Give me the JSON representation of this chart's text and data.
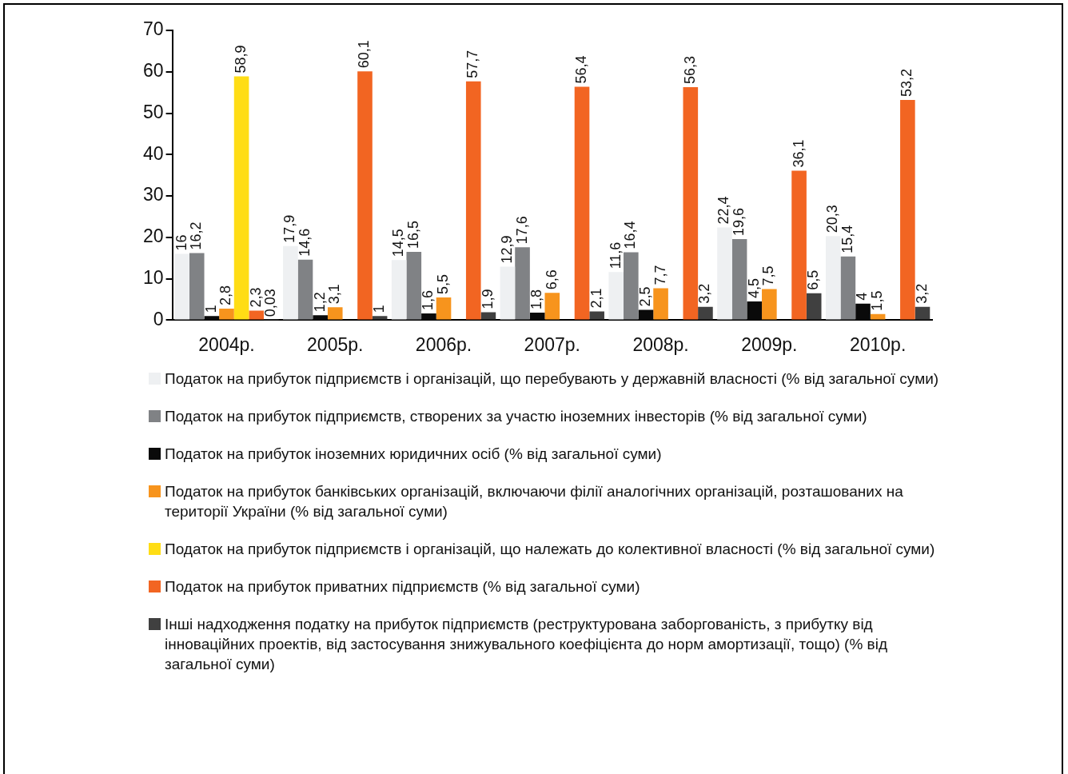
{
  "chart_data": {
    "type": "bar",
    "categories": [
      "2004р.",
      "2005р.",
      "2006р.",
      "2007р.",
      "2008р.",
      "2009р.",
      "2010р."
    ],
    "ylim": [
      0,
      70
    ],
    "yticks": [
      0,
      10,
      20,
      30,
      40,
      50,
      60,
      70
    ],
    "grid": false,
    "legend": "bottom",
    "series": [
      {
        "name": "Податок на прибуток підприємств і організацій, що перебувають у державній власності (% від загальної суми)",
        "color": "#eef0f2",
        "values": [
          16,
          17.9,
          14.5,
          12.9,
          11.6,
          22.4,
          20.3
        ],
        "value_labels": [
          "16",
          "17,9",
          "14,5",
          "12,9",
          "11,6",
          "22,4",
          "20,3"
        ]
      },
      {
        "name": "Податок на прибуток підприємств, створених за участю іноземних інвесторів (% від загальної суми)",
        "color": "#808285",
        "values": [
          16.2,
          14.6,
          16.5,
          17.6,
          16.4,
          19.6,
          15.4
        ],
        "value_labels": [
          "16,2",
          "14,6",
          "16,5",
          "17,6",
          "16,4",
          "19,6",
          "15,4"
        ]
      },
      {
        "name": "Податок на прибуток іноземних юридичних осіб (% від загальної суми)",
        "color": "#0a0a0a",
        "values": [
          1,
          1.2,
          1.6,
          1.8,
          2.5,
          4.5,
          4
        ],
        "value_labels": [
          "1",
          "1,2",
          "1,6",
          "1,8",
          "2,5",
          "4,5",
          "4"
        ]
      },
      {
        "name": "Податок на прибуток банківських організацій, включаючи філії аналогічних організацій, розташованих на території України (% від загальної суми)",
        "color": "#f7941d",
        "values": [
          2.8,
          3.1,
          5.5,
          6.6,
          7.7,
          7.5,
          1.5
        ],
        "value_labels": [
          "2,8",
          "3,1",
          "5,5",
          "6,6",
          "7,7",
          "7,5",
          "1,5"
        ]
      },
      {
        "name": "Податок на прибуток підприємств і організацій, що належать до колективної власності (% від загальної суми)",
        "color": "#ffdd15",
        "values": [
          58.9,
          null,
          null,
          null,
          null,
          null,
          null
        ],
        "value_labels": [
          "58,9",
          null,
          null,
          null,
          null,
          null,
          null
        ]
      },
      {
        "name": "Податок на прибуток приватних підприємств (% від загальної суми)",
        "color": "#f26522",
        "values": [
          2.3,
          60.1,
          57.7,
          56.4,
          56.3,
          36.1,
          53.2
        ],
        "value_labels": [
          "2,3",
          "60,1",
          "57,7",
          "56,4",
          "56,3",
          "36,1",
          "53,2"
        ]
      },
      {
        "name": "Інші надходження податку на прибуток підприємств (реструктурована заборгованість, з прибутку від інноваційних проектів, від застосування знижувального коефіцієнта до норм амортизації, тощо) (% від загальної суми)",
        "color": "#404040",
        "values": [
          0.03,
          1,
          1.9,
          2.1,
          3.2,
          6.5,
          3.2
        ],
        "value_labels": [
          "0,03",
          "1",
          "1,9",
          "2,1",
          "3,2",
          "6,5",
          "3,2"
        ]
      }
    ]
  }
}
